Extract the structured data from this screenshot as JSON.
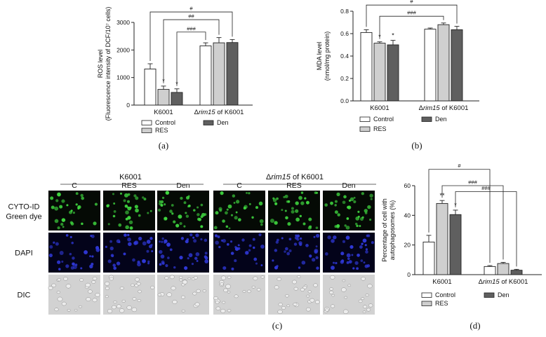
{
  "chart_data": [
    {
      "type": "bar",
      "panel": "(a)",
      "ylabel_line1": "ROS level",
      "ylabel_line2": "(Fluorescence intensity of DCF/10⁷ cells)",
      "ylim": [
        0,
        3000
      ],
      "yticks": [
        "0",
        "1000",
        "2000",
        "3000"
      ],
      "yvals": [
        0,
        1000,
        2000,
        3000
      ],
      "groups": [
        "K6001",
        "Δrim15 of K6001"
      ],
      "group_label_parts": [
        [
          "K6001"
        ],
        [
          "Δ",
          "rim15",
          " of K6001"
        ]
      ],
      "series": [
        {
          "name": "Control",
          "color": "#ffffff",
          "values": [
            1310,
            2150
          ],
          "errors": [
            190,
            110
          ]
        },
        {
          "name": "RES",
          "color": "#cfcfcf",
          "values": [
            570,
            2260
          ],
          "errors": [
            120,
            190
          ]
        },
        {
          "name": "Den",
          "color": "#5f5f5f",
          "values": [
            460,
            2270
          ],
          "errors": [
            130,
            110
          ]
        }
      ],
      "stars": [
        [
          "",
          ""
        ],
        [
          "*",
          ""
        ],
        [
          "*",
          ""
        ]
      ],
      "brackets": [
        "#",
        "##",
        "###"
      ]
    },
    {
      "type": "bar",
      "panel": "(b)",
      "ylabel_line1": "MDA level",
      "ylabel_line2": "(nmol/mg protein)",
      "ylim": [
        0,
        0.8
      ],
      "yticks": [
        "0.0",
        "0.2",
        "0.4",
        "0.6",
        "0.8"
      ],
      "yvals": [
        0,
        0.2,
        0.4,
        0.6,
        0.8
      ],
      "groups": [
        "K6001",
        "Δrim15 of K6001"
      ],
      "group_label_parts": [
        [
          "K6001"
        ],
        [
          "Δ",
          "rim15",
          " of K6001"
        ]
      ],
      "series": [
        {
          "name": "Control",
          "color": "#ffffff",
          "values": [
            0.61,
            0.64
          ],
          "errors": [
            0.025,
            0.01
          ]
        },
        {
          "name": "RES",
          "color": "#cfcfcf",
          "values": [
            0.515,
            0.68
          ],
          "errors": [
            0.012,
            0.015
          ]
        },
        {
          "name": "Den",
          "color": "#5f5f5f",
          "values": [
            0.5,
            0.635
          ],
          "errors": [
            0.04,
            0.03
          ]
        }
      ],
      "stars": [
        [
          "",
          ""
        ],
        [
          "*",
          ""
        ],
        [
          "*",
          ""
        ]
      ],
      "brackets": [
        "#",
        "###"
      ]
    },
    {
      "type": "bar",
      "panel": "(d)",
      "ylabel_line1": "Percentage of cell with",
      "ylabel_line2": "autophagosomes (%)",
      "ylim": [
        0,
        60
      ],
      "yticks": [
        "0",
        "20",
        "40",
        "60"
      ],
      "yvals": [
        0,
        20,
        40,
        60
      ],
      "groups": [
        "K6001",
        "Δrim15 of K6001"
      ],
      "group_label_parts": [
        [
          "K6001"
        ],
        [
          "Δ",
          "rim15",
          " of K6001"
        ]
      ],
      "series": [
        {
          "name": "Control",
          "color": "#ffffff",
          "values": [
            22,
            5.5
          ],
          "errors": [
            4.5,
            0.6
          ]
        },
        {
          "name": "RES",
          "color": "#cfcfcf",
          "values": [
            48,
            7.5
          ],
          "errors": [
            2,
            0.8
          ]
        },
        {
          "name": "Den",
          "color": "#5f5f5f",
          "values": [
            40.5,
            3
          ],
          "errors": [
            3,
            0.6
          ]
        }
      ],
      "stars": [
        [
          "",
          ""
        ],
        [
          "**",
          ""
        ],
        [
          "*",
          ""
        ]
      ],
      "brackets": [
        "#",
        "###",
        "###"
      ]
    }
  ],
  "figure_c": {
    "panel": "(c)",
    "group_titles": [
      "K6001",
      "Δrim15 of K6001"
    ],
    "group_title_parts": [
      [
        "K6001"
      ],
      [
        "Δ",
        "rim15",
        " of K6001"
      ]
    ],
    "columns": [
      "C",
      "RES",
      "Den",
      "C",
      "RES",
      "Den"
    ],
    "rows": [
      {
        "label_lines": [
          "CYTO-ID",
          "Green dye"
        ],
        "kind": "green"
      },
      {
        "label_lines": [
          "DAPI"
        ],
        "kind": "blue"
      },
      {
        "label_lines": [
          "DIC"
        ],
        "kind": "dic"
      }
    ]
  }
}
